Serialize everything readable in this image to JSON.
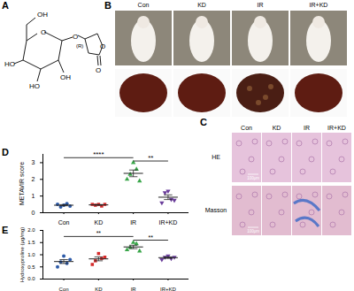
{
  "panel_labels": [
    "A",
    "B",
    "C",
    "D",
    "E"
  ],
  "structure": {
    "labels": [
      "OH",
      "O",
      "HO",
      "HO",
      "OH",
      "O",
      "(R)",
      "O",
      "O"
    ]
  },
  "photos": {
    "groups": [
      "Con",
      "KD",
      "IR",
      "IR+KD"
    ]
  },
  "histology": {
    "groups": [
      "Con",
      "KD",
      "IR",
      "IR+KD"
    ],
    "stains": [
      "HE",
      "Masson"
    ],
    "scale_bar_label": "100μm"
  },
  "chart_data": [
    {
      "type": "scatter",
      "y_label": "METAVIR score",
      "ylim": [
        0,
        3.5
      ],
      "yticks": [
        0,
        1,
        2,
        3
      ],
      "groups": [
        {
          "name": "Con",
          "color": "#2c5aa8",
          "marker": "circle",
          "values": [
            0.5,
            0.35,
            0.45,
            0.55,
            0.4
          ],
          "mean": 0.45,
          "sem": 0.035
        },
        {
          "name": "KD",
          "color": "#d62c2c",
          "marker": "square",
          "values": [
            0.5,
            0.45,
            0.5,
            0.4,
            0.5
          ],
          "mean": 0.47,
          "sem": 0.02
        },
        {
          "name": "IR",
          "color": "#3aa64a",
          "marker": "triangle",
          "values": [
            2.0,
            2.3,
            3.0,
            2.6,
            1.9
          ],
          "mean": 2.36,
          "sem": 0.2
        },
        {
          "name": "IR+KD",
          "color": "#6a3d9a",
          "marker": "triangle-down",
          "values": [
            0.6,
            1.2,
            1.3,
            0.8,
            0.75
          ],
          "mean": 0.93,
          "sem": 0.14
        }
      ],
      "annotations": [
        {
          "from": "Con",
          "to": "IR",
          "y": 3.3,
          "label": "****"
        },
        {
          "from": "IR",
          "to": "IR+KD",
          "y": 3.1,
          "label": "**"
        }
      ]
    },
    {
      "type": "scatter",
      "y_label": "Hydroxyproline (μg/mg)",
      "ylim": [
        0,
        2
      ],
      "yticks": [
        {
          "value": 0,
          "label": "0.0"
        },
        0.5,
        {
          "value": 1,
          "label": "1.0"
        },
        1.5,
        {
          "value": 2,
          "label": "2.0"
        }
      ],
      "groups": [
        {
          "name": "Con",
          "color": "#2c5aa8",
          "marker": "circle",
          "values": [
            0.5,
            0.7,
            0.95,
            0.65,
            0.8
          ],
          "mean": 0.72,
          "sem": 0.08
        },
        {
          "name": "KD",
          "color": "#d62c2c",
          "marker": "square",
          "values": [
            0.6,
            0.75,
            1.05,
            0.85,
            0.9
          ],
          "mean": 0.83,
          "sem": 0.08
        },
        {
          "name": "IR",
          "color": "#3aa64a",
          "marker": "triangle",
          "values": [
            1.2,
            1.3,
            1.5,
            1.45,
            1.15
          ],
          "mean": 1.32,
          "sem": 0.07
        },
        {
          "name": "IR+KD",
          "color": "#6a3d9a",
          "marker": "triangle-down",
          "values": [
            0.8,
            0.9,
            0.95,
            0.85,
            0.9
          ],
          "mean": 0.88,
          "sem": 0.03
        }
      ],
      "annotations": [
        {
          "from": "Con",
          "to": "IR",
          "y": 1.75,
          "label": "**"
        },
        {
          "from": "IR",
          "to": "IR+KD",
          "y": 1.6,
          "label": "**"
        }
      ]
    }
  ]
}
